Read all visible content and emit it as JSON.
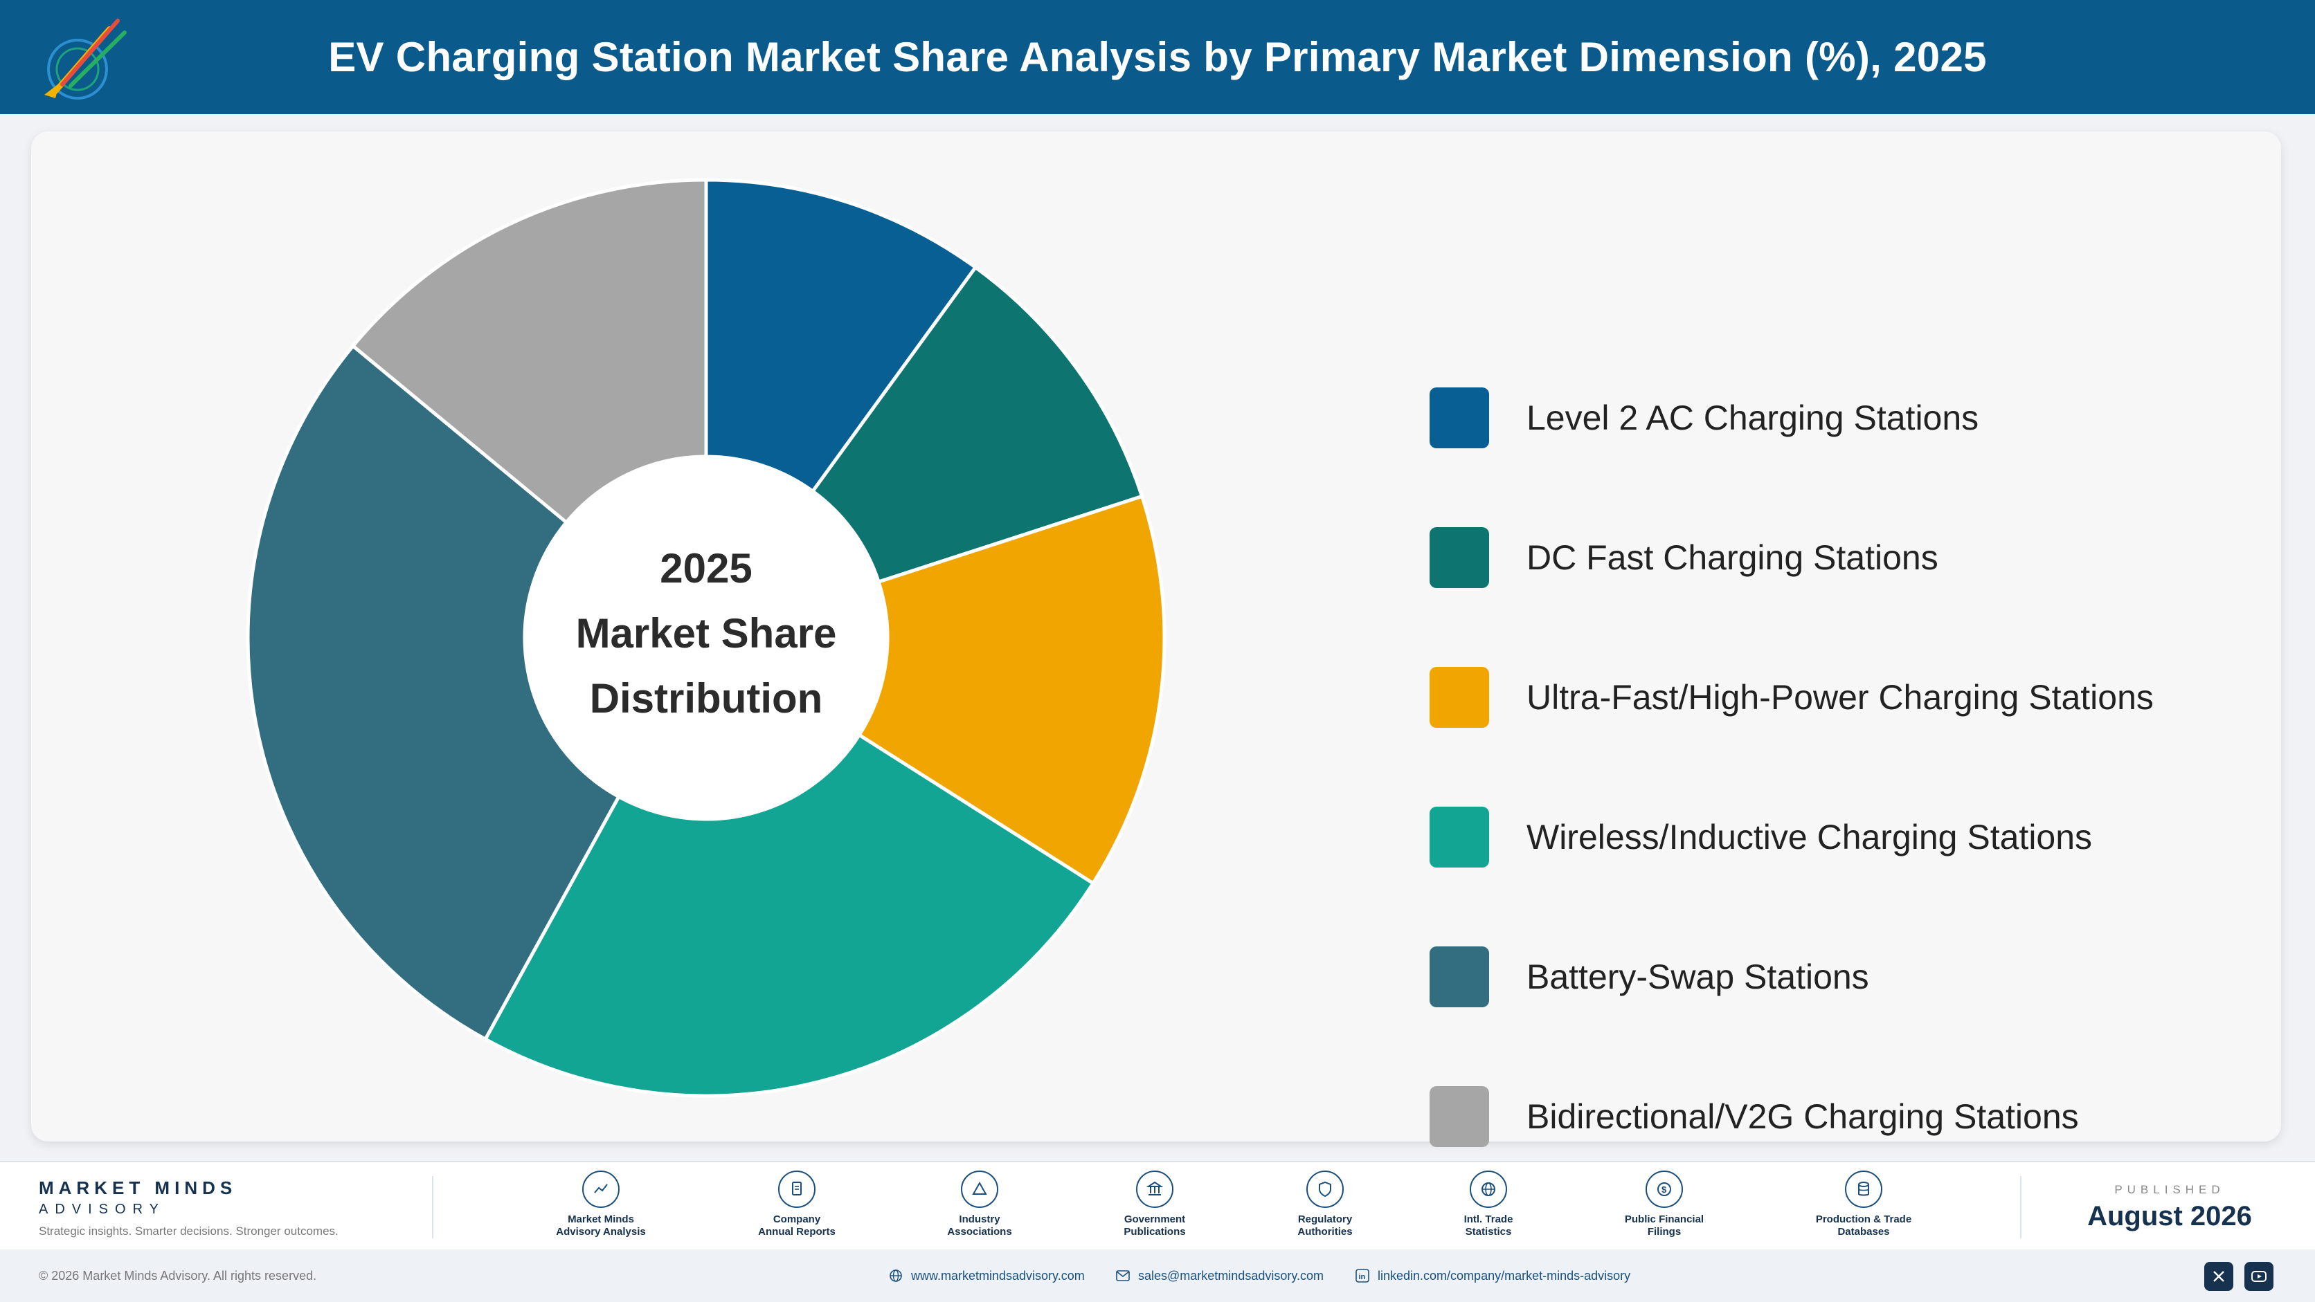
{
  "header": {
    "title": "EV Charging Station Market Share Analysis by Primary Market Dimension (%), 2025"
  },
  "chart_data": {
    "type": "pie",
    "title": "EV Charging Station Market Share Analysis by Primary Market Dimension (%), 2025",
    "center_label": [
      "2025",
      "Market Share",
      "Distribution"
    ],
    "categories": [
      "Level 2 AC Charging Stations",
      "DC Fast Charging Stations",
      "Ultra-Fast/High-Power Charging Stations",
      "Wireless/Inductive Charging Stations",
      "Battery-Swap Stations",
      "Bidirectional/V2G Charging Stations"
    ],
    "values": [
      10,
      10,
      14,
      24,
      28,
      14
    ],
    "colors": [
      "#075f94",
      "#0e7470",
      "#f0a500",
      "#12a594",
      "#336d80",
      "#a6a6a6"
    ],
    "legend_position": "right"
  },
  "footer": {
    "brand_name": "MARKET MINDS",
    "brand_sub": "ADVISORY",
    "tagline": "Strategic insights. Smarter decisions. Stronger outcomes.",
    "sources": [
      {
        "label": "Market Minds\nAdvisory Analysis",
        "icon": "chart-line-icon"
      },
      {
        "label": "Company\nAnnual Reports",
        "icon": "document-icon"
      },
      {
        "label": "Industry\nAssociations",
        "icon": "network-icon"
      },
      {
        "label": "Government\nPublications",
        "icon": "government-icon"
      },
      {
        "label": "Regulatory\nAuthorities",
        "icon": "shield-icon"
      },
      {
        "label": "Intl. Trade\nStatistics",
        "icon": "globe-icon"
      },
      {
        "label": "Public Financial\nFilings",
        "icon": "dollar-icon"
      },
      {
        "label": "Production & Trade\nDatabases",
        "icon": "database-icon"
      }
    ],
    "published_label": "PUBLISHED",
    "published_date": "August 2026"
  },
  "bottombar": {
    "copyright": "© 2026 Market Minds Advisory. All rights reserved.",
    "website": "www.marketmindsadvisory.com",
    "email": "sales@marketmindsadvisory.com",
    "linkedin": "linkedin.com/company/market-minds-advisory"
  }
}
